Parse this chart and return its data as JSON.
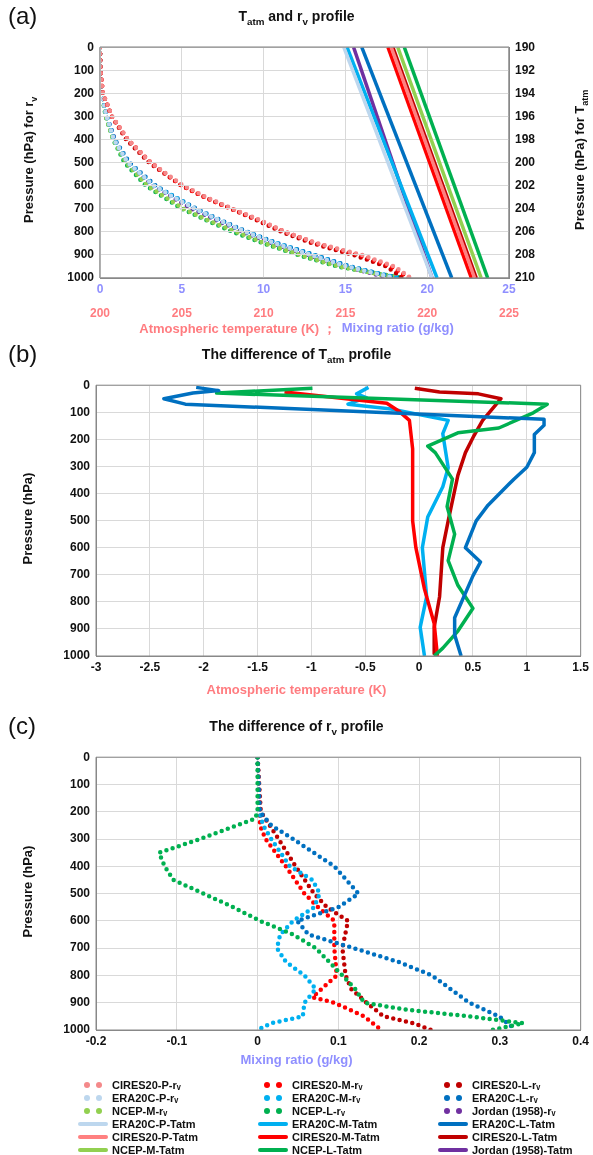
{
  "chart_data": [
    {
      "type": "line",
      "title": "T$_{atm}$ and r$_{v}$ profile",
      "annotations": [
        "(a)"
      ],
      "xlabel": "Mixing ratio (g/kg)",
      "ylabel": "Pressure (hPa) for r$_{v}$",
      "xlim": [
        0,
        25
      ],
      "xticks": [
        0,
        5,
        10,
        15,
        20,
        25
      ],
      "ylim": [
        1000,
        0
      ],
      "yticks": [
        0,
        100,
        200,
        300,
        400,
        500,
        600,
        700,
        800,
        900,
        1000
      ],
      "grid": true,
      "legend": "bottom",
      "series": [
        {
          "name": "CIRES20-P-rᵥ",
          "color": "#f4898a",
          "line_style": "dotted",
          "x": [
            0,
            0.03,
            0.18,
            0.74,
            1.7,
            3.1,
            5.1,
            6.5,
            8.1,
            9.8,
            11.3,
            13.3,
            16.0,
            18.0,
            19.0
          ],
          "values": [
            0,
            100,
            200,
            300,
            400,
            500,
            600,
            650,
            700,
            750,
            800,
            850,
            900,
            950,
            1000
          ]
        },
        {
          "name": "CIRES20-M-rᵥ",
          "color": "#ff0000",
          "line_style": "dotted",
          "x": [
            0,
            0.03,
            0.18,
            0.72,
            1.7,
            3.1,
            5.0,
            6.4,
            8.0,
            9.7,
            11.3,
            13.2,
            15.8,
            17.8,
            18.9
          ],
          "values": [
            0,
            100,
            200,
            300,
            400,
            500,
            600,
            650,
            700,
            750,
            800,
            850,
            900,
            950,
            1000
          ]
        },
        {
          "name": "CIRES20-L-rᵥ",
          "color": "#c00000",
          "line_style": "dotted",
          "x": [
            0,
            0.03,
            0.17,
            0.72,
            1.6,
            3.0,
            5.0,
            6.4,
            8.0,
            9.6,
            11.1,
            13.0,
            15.5,
            17.5,
            18.5
          ],
          "values": [
            0,
            100,
            200,
            300,
            400,
            500,
            600,
            650,
            700,
            750,
            800,
            850,
            900,
            950,
            1000
          ]
        },
        {
          "name": "ERA20C-P-rᵥ",
          "color": "#bdd7ee",
          "line_style": "dotted",
          "x": [
            0,
            0.02,
            0.1,
            0.4,
            0.85,
            1.7,
            3.3,
            4.5,
            5.8,
            7.3,
            8.9,
            10.7,
            12.9,
            15.1,
            18.0
          ],
          "values": [
            0,
            100,
            200,
            300,
            400,
            500,
            600,
            650,
            700,
            750,
            800,
            850,
            900,
            950,
            1000
          ]
        },
        {
          "name": "ERA20C-M-rᵥ",
          "color": "#00b0f0",
          "line_style": "dotted",
          "x": [
            0,
            0.02,
            0.1,
            0.4,
            0.85,
            1.7,
            3.3,
            4.6,
            5.8,
            7.3,
            8.9,
            10.8,
            13.0,
            15.2,
            18.2
          ],
          "values": [
            0,
            100,
            200,
            300,
            400,
            500,
            600,
            650,
            700,
            750,
            800,
            850,
            900,
            950,
            1000
          ]
        },
        {
          "name": "ERA20C-L-rᵥ",
          "color": "#0070c0",
          "line_style": "dotted",
          "x": [
            0,
            0.02,
            0.1,
            0.42,
            0.9,
            1.8,
            3.4,
            4.6,
            5.9,
            7.4,
            9.0,
            10.9,
            13.1,
            15.3,
            18.2
          ],
          "values": [
            0,
            100,
            200,
            300,
            400,
            500,
            600,
            650,
            700,
            750,
            800,
            850,
            900,
            950,
            1000
          ]
        },
        {
          "name": "NCEP-M-rᵥ",
          "color": "#92d050",
          "line_style": "dotted",
          "x": [
            0,
            0.02,
            0.1,
            0.35,
            0.8,
            1.6,
            2.9,
            4.0,
            5.1,
            6.6,
            8.3,
            10.1,
            12.2,
            14.6,
            18.3
          ],
          "values": [
            0,
            100,
            200,
            300,
            400,
            500,
            600,
            650,
            700,
            750,
            800,
            850,
            900,
            950,
            1000
          ]
        },
        {
          "name": "NCEP-L-rᵥ",
          "color": "#00b050",
          "line_style": "dotted",
          "x": [
            0,
            0.02,
            0.1,
            0.35,
            0.8,
            1.5,
            2.8,
            3.9,
            5.0,
            6.5,
            8.1,
            10.0,
            12.1,
            14.5,
            18.5
          ],
          "values": [
            0,
            100,
            200,
            300,
            400,
            500,
            600,
            650,
            700,
            750,
            800,
            850,
            900,
            950,
            1000
          ]
        },
        {
          "name": "Jordan (1958)-rᵥ",
          "color": "#7030a0",
          "line_style": "dotted",
          "x": [
            0,
            0.02,
            0.1,
            0.4,
            0.9,
            1.6,
            3.2,
            4.4,
            5.6,
            7.1,
            8.7,
            10.5,
            12.7,
            15.0,
            17.7
          ],
          "values": [
            0,
            100,
            200,
            300,
            400,
            500,
            600,
            650,
            700,
            750,
            800,
            850,
            900,
            950,
            1000
          ]
        }
      ]
    },
    {
      "type": "line",
      "xlabel": "Atmospheric temperature (K) ；",
      "ylabel": "Pressure (hPa) for T$_{atm}$",
      "xlim": [
        200,
        225
      ],
      "xticks": [
        200,
        205,
        210,
        215,
        220,
        225
      ],
      "ylim": [
        210,
        190
      ],
      "yticks": [
        190,
        192,
        194,
        196,
        198,
        200,
        202,
        204,
        206,
        208,
        210
      ],
      "grid": true,
      "legend": "bottom",
      "series": [
        {
          "name": "ERA20C-P-Tatm",
          "color": "#bdd7ee",
          "x": [
            214.9,
            220.3
          ],
          "values": [
            190,
            210
          ]
        },
        {
          "name": "ERA20C-M-Tatm",
          "color": "#00b0f0",
          "x": [
            215.1,
            220.6
          ],
          "values": [
            190,
            210
          ]
        },
        {
          "name": "ERA20C-L-Tatm",
          "color": "#0070c0",
          "x": [
            216.0,
            221.5
          ],
          "values": [
            190,
            210
          ]
        },
        {
          "name": "CIRES20-P-Tatm",
          "color": "#ff8080",
          "x": [
            217.8,
            222.9
          ],
          "values": [
            190,
            210
          ]
        },
        {
          "name": "CIRES20-M-Tatm",
          "color": "#ff0000",
          "x": [
            217.6,
            222.7
          ],
          "values": [
            190,
            210
          ]
        },
        {
          "name": "CIRES20-L-Tatm",
          "color": "#c00000",
          "x": [
            217.9,
            223.0
          ],
          "values": [
            190,
            210
          ]
        },
        {
          "name": "NCEP-M-Tatm",
          "color": "#92d050",
          "x": [
            218.2,
            223.3
          ],
          "values": [
            190,
            210
          ]
        },
        {
          "name": "NCEP-L-Tatm",
          "color": "#00b050",
          "x": [
            218.6,
            223.7
          ],
          "values": [
            190,
            210
          ]
        },
        {
          "name": "Jordan (1958)-Tatm",
          "color": "#7030a0",
          "x": [
            215.5,
            220.3
          ],
          "values": [
            190,
            210
          ]
        }
      ]
    },
    {
      "type": "line",
      "title": "The difference of T$_{atm}$ profile",
      "annotations": [
        "(b)"
      ],
      "xlabel": "Atmospheric temperature (K)",
      "ylabel": "Pressure (hPa)",
      "xlim": [
        -3,
        1.5
      ],
      "xticks": [
        -3,
        -2.5,
        -2,
        -1.5,
        -1,
        -0.5,
        0,
        0.5,
        1,
        1.5
      ],
      "ylim": [
        1000,
        0
      ],
      "yticks": [
        0,
        100,
        200,
        300,
        400,
        500,
        600,
        700,
        800,
        900,
        1000
      ],
      "grid": true,
      "series": [
        {
          "color": "#0070c0",
          "x": [
            -2.07,
            -1.86,
            -2.1,
            -2.37,
            -2.17,
            1.16,
            1.16,
            1.07,
            1.07,
            1.0,
            0.88,
            0.64,
            0.53,
            0.43,
            0.57,
            0.5,
            0.33,
            0.33,
            0.39
          ],
          "values": [
            8,
            20,
            29,
            50,
            70,
            126,
            148,
            182,
            249,
            303,
            347,
            443,
            501,
            600,
            653,
            704,
            859,
            922,
            1000
          ]
        },
        {
          "color": "#00b050",
          "x": [
            -0.99,
            -1.88,
            1.19,
            1.06,
            0.74,
            0.36,
            0.08,
            0.15,
            0.31,
            0.26,
            0.33,
            0.27,
            0.36,
            0.5,
            0.36,
            0.22,
            0.14
          ],
          "values": [
            11,
            29,
            70,
            102,
            158,
            176,
            225,
            249,
            347,
            448,
            550,
            648,
            739,
            824,
            908,
            971,
            1000
          ]
        },
        {
          "color": "#ff0000",
          "x": [
            -1.25,
            -0.3,
            -0.19,
            -0.09,
            -0.06,
            -0.06,
            -0.03,
            0.05,
            0.14,
            0.17
          ],
          "values": [
            25,
            67,
            95,
            130,
            235,
            501,
            600,
            753,
            880,
            1000
          ]
        },
        {
          "color": "#00b0f0",
          "x": [
            -0.47,
            -0.58,
            -0.49,
            -0.66,
            -0.26,
            0.27,
            0.22,
            0.27,
            0.22,
            0.08,
            0.03,
            0.07,
            0.01,
            0.05
          ],
          "values": [
            8,
            32,
            46,
            70,
            88,
            130,
            179,
            305,
            375,
            487,
            600,
            781,
            894,
            1000
          ]
        },
        {
          "color": "#c00000",
          "x": [
            -0.04,
            0.19,
            0.55,
            0.76,
            0.59,
            0.51,
            0.43,
            0.36,
            0.27,
            0.22,
            0.19,
            0.14,
            0.14
          ],
          "values": [
            11,
            25,
            32,
            50,
            130,
            186,
            249,
            333,
            501,
            600,
            781,
            894,
            992
          ]
        }
      ]
    },
    {
      "type": "line",
      "title": "The difference of r$_{v}$ profile",
      "annotations": [
        "(c)"
      ],
      "xlabel": "Mixing ratio (g/kg)",
      "ylabel": "Pressure (hPa)",
      "line_style": "dotted",
      "xlim": [
        -0.2,
        0.4
      ],
      "xticks": [
        -0.2,
        -0.1,
        0,
        0.1,
        0.2,
        0.3,
        0.4
      ],
      "ylim": [
        1000,
        0
      ],
      "yticks": [
        0,
        100,
        200,
        300,
        400,
        500,
        600,
        700,
        800,
        900,
        1000
      ],
      "grid": true,
      "series": [
        {
          "color": "#00b050",
          "x": [
            0,
            0,
            -0.003,
            -0.071,
            -0.122,
            -0.115,
            -0.104,
            -0.067,
            -0.03,
            0.003,
            0.044,
            0.072,
            0.105,
            0.121,
            0.132,
            0.183,
            0.262,
            0.329,
            0.29
          ],
          "values": [
            0,
            200,
            225,
            300,
            350,
            400,
            450,
            500,
            550,
            600,
            650,
            700,
            800,
            850,
            900,
            925,
            950,
            975,
            1000
          ]
        },
        {
          "color": "#0070c0",
          "x": [
            0,
            0.003,
            0.017,
            0.044,
            0.095,
            0.125,
            0.1,
            0.049,
            0.063,
            0.119,
            0.174,
            0.216,
            0.239,
            0.262,
            0.299,
            0.32
          ],
          "values": [
            0,
            200,
            250,
            300,
            400,
            500,
            550,
            600,
            650,
            700,
            750,
            800,
            850,
            900,
            950,
            1000
          ]
        },
        {
          "color": "#00b0f0",
          "x": [
            0,
            0.002,
            0.007,
            0.017,
            0.04,
            0.068,
            0.077,
            0.07,
            0.044,
            0.028,
            0.024,
            0.035,
            0.058,
            0.072,
            0.058,
            0.056,
            0.017,
            0
          ],
          "values": [
            0,
            200,
            250,
            300,
            400,
            450,
            500,
            550,
            600,
            650,
            700,
            750,
            800,
            850,
            900,
            950,
            975,
            1000
          ]
        },
        {
          "color": "#ff0000",
          "x": [
            0,
            0.003,
            0.003,
            0.01,
            0.035,
            0.058,
            0.075,
            0.095,
            0.095,
            0.098,
            0.079,
            0.068,
            0.095,
            0.132,
            0.153
          ],
          "values": [
            0,
            200,
            250,
            300,
            400,
            500,
            550,
            600,
            700,
            800,
            850,
            880,
            900,
            950,
            1000
          ]
        },
        {
          "color": "#c00000",
          "x": [
            0,
            0.004,
            0.026,
            0.047,
            0.07,
            0.086,
            0.112,
            0.105,
            0.109,
            0.116,
            0.135,
            0.156,
            0.193,
            0.215
          ],
          "values": [
            0,
            200,
            300,
            400,
            500,
            550,
            600,
            700,
            800,
            850,
            900,
            950,
            975,
            1000
          ]
        }
      ]
    }
  ]
}
